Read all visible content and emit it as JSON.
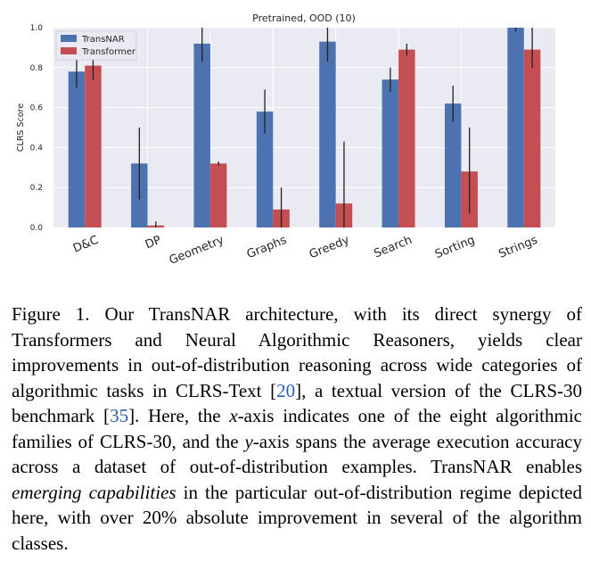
{
  "figure": {
    "chart_data": {
      "type": "bar",
      "title": "Pretrained, OOD (10)",
      "xlabel": "",
      "ylabel": "CLRS Score",
      "ylim": [
        0.0,
        1.0
      ],
      "yticks": [
        "0.0",
        "0.2",
        "0.4",
        "0.6",
        "0.8",
        "1.0"
      ],
      "grid": true,
      "legend_position": "top-left",
      "categories": [
        "D&C",
        "DP",
        "Geometry",
        "Graphs",
        "Greedy",
        "Search",
        "Sorting",
        "Strings"
      ],
      "series": [
        {
          "name": "TransNAR",
          "color": "#4c72b0",
          "values": [
            0.78,
            0.32,
            0.92,
            0.58,
            0.93,
            0.74,
            0.62,
            1.0
          ],
          "err_low": [
            0.7,
            0.14,
            0.83,
            0.47,
            0.83,
            0.68,
            0.53,
            0.98
          ],
          "err_high": [
            0.85,
            0.5,
            1.0,
            0.69,
            1.0,
            0.8,
            0.71,
            1.0
          ]
        },
        {
          "name": "Transformer",
          "color": "#c44e52",
          "values": [
            0.81,
            0.01,
            0.32,
            0.09,
            0.12,
            0.89,
            0.28,
            0.89
          ],
          "err_low": [
            0.74,
            0.0,
            0.31,
            0.0,
            0.0,
            0.86,
            0.07,
            0.8
          ],
          "err_high": [
            0.87,
            0.03,
            0.33,
            0.2,
            0.43,
            0.92,
            0.5,
            1.0
          ]
        }
      ]
    }
  },
  "caption": {
    "label": "Figure 1.",
    "t1": "Our TransNAR architecture, with its direct synergy of Transformers and Neural Algorithmic Reasoners, yields clear improvements in out-of-distribution reasoning across wide categories of algorithmic tasks in CLRS-Text [",
    "ref1": "20",
    "t2": "], a textual version of the CLRS-30 benchmark [",
    "ref2": "35",
    "t3": "]. Here, the ",
    "x": "x",
    "t4": "-axis indicates one of the eight algorithmic families of CLRS-30, and the ",
    "y": "y",
    "t5": "-axis spans the average execution accuracy across a dataset of out-of-distribution examples. TransNAR enables ",
    "emph": "emerging capabilities",
    "t6": " in the particular out-of-distribution regime depicted here, with over 20% absolute improvement in several of the algorithm classes."
  }
}
